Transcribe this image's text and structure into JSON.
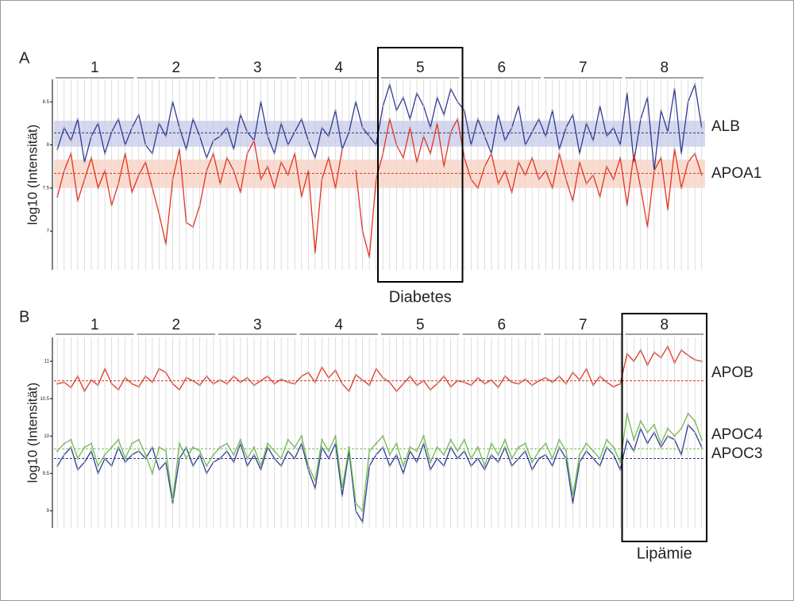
{
  "chart_data": [
    {
      "type": "line",
      "panel": "A",
      "ylabel": "log10 (Intensität)",
      "x": [
        1,
        2,
        3,
        4,
        5,
        6,
        7,
        8,
        9,
        10,
        11,
        12,
        13,
        14,
        15,
        16,
        17,
        18,
        19,
        20,
        21,
        22,
        23,
        24,
        25,
        26,
        27,
        28,
        29,
        30,
        31,
        32,
        33,
        34,
        35,
        36,
        37,
        38,
        39,
        40,
        41,
        42,
        43,
        44,
        45,
        46,
        47,
        48,
        49,
        50,
        51,
        52,
        53,
        54,
        55,
        56,
        57,
        58,
        59,
        60,
        61,
        62,
        63,
        64,
        65,
        66,
        67,
        68,
        69,
        70,
        71,
        72,
        73,
        74,
        75,
        76,
        77,
        78,
        79,
        80,
        81,
        82,
        83,
        84,
        85,
        86,
        87,
        88,
        89,
        90,
        91,
        92,
        93,
        94,
        95,
        96
      ],
      "xlim": [
        0.5,
        96.5
      ],
      "ylim": [
        6.55,
        8.76
      ],
      "yticks": [
        7,
        7.5,
        8,
        8.5
      ],
      "groups": [
        {
          "label": "1",
          "range": [
            1,
            12
          ]
        },
        {
          "label": "2",
          "range": [
            13,
            24
          ]
        },
        {
          "label": "3",
          "range": [
            25,
            36
          ]
        },
        {
          "label": "4",
          "range": [
            37,
            48
          ]
        },
        {
          "label": "5",
          "range": [
            49,
            60
          ]
        },
        {
          "label": "6",
          "range": [
            61,
            72
          ]
        },
        {
          "label": "7",
          "range": [
            73,
            84
          ]
        },
        {
          "label": "8",
          "range": [
            85,
            96
          ]
        }
      ],
      "highlight": {
        "label": "Diabetes",
        "range": [
          49,
          60
        ]
      },
      "series": [
        {
          "name": "ALB",
          "color": "#2e3a93",
          "band_color": "#c9cde8",
          "mean": 8.14,
          "band": [
            7.98,
            8.28
          ],
          "values": [
            7.95,
            8.2,
            8.05,
            8.3,
            7.8,
            8.1,
            8.25,
            7.9,
            8.15,
            8.3,
            8.0,
            8.2,
            8.35,
            8.0,
            7.9,
            8.25,
            8.1,
            8.5,
            8.2,
            7.95,
            8.3,
            8.1,
            7.85,
            8.05,
            8.1,
            8.2,
            7.95,
            8.35,
            8.15,
            8.05,
            8.5,
            8.1,
            7.9,
            8.25,
            8.0,
            8.15,
            8.3,
            8.05,
            7.85,
            8.2,
            8.1,
            8.4,
            7.95,
            8.15,
            8.5,
            8.2,
            8.1,
            8.0,
            8.45,
            8.7,
            8.4,
            8.55,
            8.3,
            8.6,
            8.45,
            8.2,
            8.55,
            8.35,
            8.65,
            8.5,
            8.4,
            8.0,
            8.3,
            8.1,
            7.9,
            8.35,
            8.05,
            8.2,
            8.45,
            8.0,
            8.15,
            8.3,
            8.1,
            8.4,
            7.95,
            8.2,
            8.35,
            7.9,
            8.25,
            8.05,
            8.45,
            8.1,
            8.2,
            8.0,
            8.6,
            7.8,
            8.3,
            8.55,
            7.7,
            8.4,
            8.15,
            8.65,
            7.9,
            8.5,
            8.7,
            8.2
          ]
        },
        {
          "name": "APOA1",
          "color": "#e5321e",
          "band_color": "#f8d3c6",
          "mean": 7.67,
          "band": [
            7.5,
            7.83
          ],
          "values": [
            7.4,
            7.7,
            7.9,
            7.35,
            7.6,
            7.85,
            7.5,
            7.7,
            7.3,
            7.55,
            7.9,
            7.45,
            7.65,
            7.8,
            7.5,
            7.2,
            6.85,
            7.6,
            7.95,
            7.1,
            7.05,
            7.3,
            7.7,
            7.9,
            7.55,
            7.85,
            7.7,
            7.45,
            7.9,
            8.05,
            7.6,
            7.75,
            7.5,
            7.8,
            7.65,
            7.9,
            7.4,
            7.7,
            6.75,
            7.6,
            7.85,
            7.5,
            7.95,
            null,
            7.7,
            7.0,
            6.7,
            7.6,
            7.9,
            8.3,
            8.0,
            7.85,
            8.2,
            7.8,
            8.1,
            7.9,
            8.25,
            7.75,
            8.15,
            8.3,
            7.85,
            7.6,
            7.5,
            7.75,
            7.9,
            7.55,
            7.7,
            7.45,
            7.8,
            7.65,
            7.85,
            7.6,
            7.7,
            7.5,
            7.9,
            7.6,
            7.35,
            7.8,
            7.55,
            7.65,
            7.4,
            7.75,
            7.6,
            7.85,
            7.3,
            7.9,
            7.5,
            7.05,
            7.7,
            7.85,
            7.25,
            7.95,
            7.5,
            7.8,
            7.9,
            7.65
          ]
        }
      ]
    },
    {
      "type": "line",
      "panel": "B",
      "ylabel": "log10 (Intensität)",
      "x": [
        1,
        2,
        3,
        4,
        5,
        6,
        7,
        8,
        9,
        10,
        11,
        12,
        13,
        14,
        15,
        16,
        17,
        18,
        19,
        20,
        21,
        22,
        23,
        24,
        25,
        26,
        27,
        28,
        29,
        30,
        31,
        32,
        33,
        34,
        35,
        36,
        37,
        38,
        39,
        40,
        41,
        42,
        43,
        44,
        45,
        46,
        47,
        48,
        49,
        50,
        51,
        52,
        53,
        54,
        55,
        56,
        57,
        58,
        59,
        60,
        61,
        62,
        63,
        64,
        65,
        66,
        67,
        68,
        69,
        70,
        71,
        72,
        73,
        74,
        75,
        76,
        77,
        78,
        79,
        80,
        81,
        82,
        83,
        84,
        85,
        86,
        87,
        88,
        89,
        90,
        91,
        92,
        93,
        94,
        95,
        96
      ],
      "xlim": [
        0.5,
        96.5
      ],
      "ylim": [
        8.77,
        11.32
      ],
      "yticks": [
        9,
        9.5,
        10,
        10.5,
        11
      ],
      "groups": [
        {
          "label": "1",
          "range": [
            1,
            12
          ]
        },
        {
          "label": "2",
          "range": [
            13,
            24
          ]
        },
        {
          "label": "3",
          "range": [
            25,
            36
          ]
        },
        {
          "label": "4",
          "range": [
            37,
            48
          ]
        },
        {
          "label": "5",
          "range": [
            49,
            60
          ]
        },
        {
          "label": "6",
          "range": [
            61,
            72
          ]
        },
        {
          "label": "7",
          "range": [
            73,
            84
          ]
        },
        {
          "label": "8",
          "range": [
            85,
            96
          ]
        }
      ],
      "highlight": {
        "label": "Lipämie",
        "range": [
          85,
          96
        ]
      },
      "series": [
        {
          "name": "APOB",
          "color": "#e5321e",
          "mean": 10.74,
          "values": [
            10.7,
            10.72,
            10.65,
            10.8,
            10.6,
            10.75,
            10.68,
            10.9,
            10.7,
            10.62,
            10.78,
            10.7,
            10.66,
            10.8,
            10.72,
            10.9,
            10.85,
            10.7,
            10.62,
            10.78,
            10.74,
            10.68,
            10.8,
            10.7,
            10.75,
            10.7,
            10.8,
            10.72,
            10.78,
            10.68,
            10.74,
            10.8,
            10.7,
            10.76,
            10.72,
            10.7,
            10.8,
            10.85,
            10.72,
            10.92,
            10.78,
            10.88,
            10.7,
            10.6,
            10.82,
            10.75,
            10.68,
            10.9,
            10.78,
            10.72,
            10.6,
            10.7,
            10.8,
            10.68,
            10.74,
            10.62,
            10.7,
            10.8,
            10.66,
            10.74,
            10.72,
            10.68,
            10.78,
            10.7,
            10.75,
            10.65,
            10.8,
            10.72,
            10.7,
            10.76,
            10.68,
            10.74,
            10.78,
            10.72,
            10.8,
            10.7,
            10.85,
            10.75,
            10.9,
            10.68,
            10.8,
            10.72,
            10.66,
            10.7,
            11.1,
            11.0,
            11.15,
            10.95,
            11.12,
            11.05,
            11.2,
            10.98,
            11.15,
            11.08,
            11.02,
            11.0
          ]
        },
        {
          "name": "APOC4",
          "color": "#2e3a93",
          "mean": 9.7,
          "values": [
            9.6,
            9.75,
            9.85,
            9.55,
            9.65,
            9.8,
            9.5,
            9.7,
            9.6,
            9.85,
            9.65,
            9.75,
            9.8,
            9.7,
            9.85,
            9.55,
            9.65,
            9.1,
            9.7,
            9.85,
            9.6,
            9.75,
            9.5,
            9.65,
            9.7,
            9.8,
            9.65,
            9.9,
            9.6,
            9.75,
            9.55,
            9.85,
            9.7,
            9.6,
            9.8,
            9.7,
            9.9,
            9.55,
            9.3,
            9.85,
            9.7,
            9.9,
            9.2,
            9.8,
            9.0,
            8.85,
            9.6,
            9.75,
            9.85,
            9.6,
            9.75,
            9.5,
            9.8,
            9.65,
            9.9,
            9.55,
            9.7,
            9.6,
            9.85,
            9.7,
            9.8,
            9.6,
            9.7,
            9.55,
            9.75,
            9.65,
            9.85,
            9.6,
            9.7,
            9.8,
            9.55,
            9.7,
            9.75,
            9.6,
            9.85,
            9.7,
            9.1,
            9.65,
            9.8,
            9.7,
            9.6,
            9.85,
            9.75,
            9.55,
            9.95,
            9.8,
            10.1,
            9.9,
            10.05,
            9.85,
            10.0,
            9.95,
            9.75,
            10.15,
            10.05,
            9.85
          ]
        },
        {
          "name": "APOC3",
          "color": "#6cbd4a",
          "label_color": "#1f7a3a",
          "mean": 9.83,
          "values": [
            9.8,
            9.9,
            9.95,
            9.7,
            9.85,
            9.9,
            9.6,
            9.75,
            9.85,
            9.95,
            9.7,
            9.9,
            9.95,
            9.75,
            9.5,
            9.85,
            9.8,
            9.15,
            9.9,
            9.7,
            9.85,
            9.8,
            9.6,
            9.75,
            9.85,
            9.9,
            9.75,
            9.95,
            9.7,
            9.85,
            9.6,
            9.9,
            9.8,
            9.7,
            9.95,
            9.85,
            10.0,
            9.6,
            9.4,
            9.95,
            9.8,
            10.0,
            9.3,
            9.85,
            9.1,
            9.0,
            9.8,
            9.9,
            10.0,
            9.75,
            9.9,
            9.6,
            9.85,
            9.8,
            10.0,
            9.65,
            9.85,
            9.75,
            9.95,
            9.8,
            9.95,
            9.7,
            9.85,
            9.6,
            9.9,
            9.75,
            9.95,
            9.7,
            9.85,
            9.9,
            9.65,
            9.8,
            9.9,
            9.7,
            9.95,
            9.8,
            9.2,
            9.75,
            9.9,
            9.8,
            9.7,
            9.95,
            9.85,
            9.65,
            10.3,
            9.95,
            10.2,
            10.05,
            10.15,
            9.9,
            10.1,
            10.0,
            10.1,
            10.3,
            10.2,
            9.95
          ]
        }
      ]
    }
  ]
}
